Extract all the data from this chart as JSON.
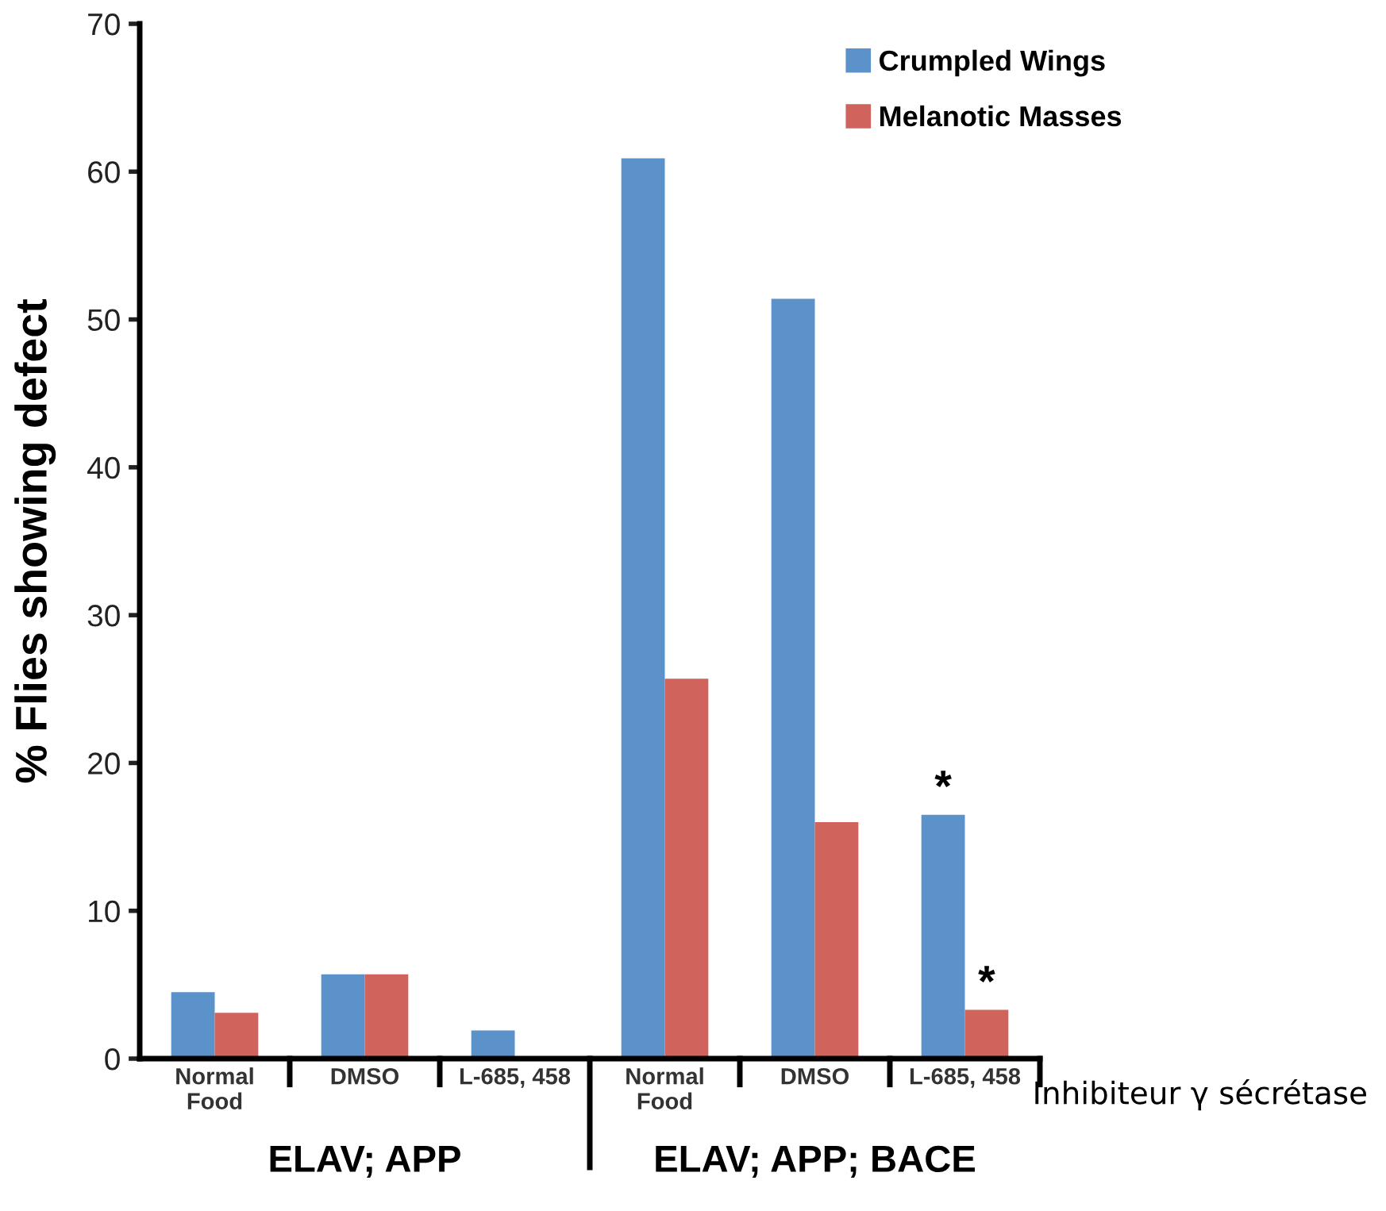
{
  "chart_data": {
    "type": "bar",
    "ylabel": "% Flies showing defect",
    "categories": [
      "Normal\nFood",
      "DMSO",
      "L-685, 458",
      "Normal\nFood",
      "DMSO",
      "L-685, 458"
    ],
    "series": [
      {
        "name": "Crumpled Wings",
        "color": "#5b92c9",
        "values": [
          4.5,
          5.7,
          1.9,
          60.9,
          51.4,
          16.5
        ]
      },
      {
        "name": "Melanotic Masses",
        "color": "#d0635c",
        "values": [
          3.1,
          5.7,
          null,
          25.7,
          16.0,
          3.3
        ]
      }
    ],
    "ylim": [
      0,
      70
    ],
    "yticks": [
      0,
      10,
      20,
      30,
      40,
      50,
      60,
      70
    ],
    "grid": false,
    "legend": "top right",
    "annotations": [
      "ELAV; APP",
      "ELAV; APP; BACE",
      "Inhibiteur γ sécrétase",
      "*",
      "*"
    ]
  }
}
